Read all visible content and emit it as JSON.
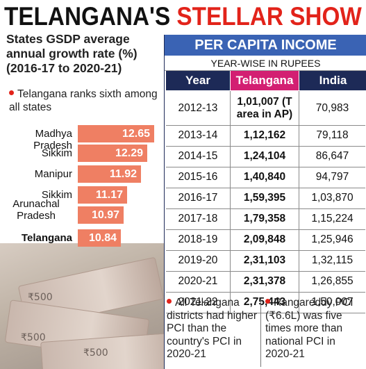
{
  "header": {
    "title_part1": "TELANGANA'S",
    "title_part2": "STELLAR SHOW"
  },
  "left_panel": {
    "subtitle": "States GSDP average annual growth rate (%) (2016-17 to 2020-21)",
    "note": "Telangana ranks sixth among all states"
  },
  "chart_data": [
    {
      "type": "bar",
      "orientation": "horizontal",
      "title": "States GSDP average annual growth rate (%) (2016-17 to 2020-21)",
      "categories": [
        "Madhya Pradesh",
        "Sikkim",
        "Manipur",
        "Sikkim",
        "Arunachal Pradesh",
        "Telangana"
      ],
      "values": [
        12.65,
        12.29,
        11.92,
        11.17,
        10.97,
        10.84
      ],
      "value_labels": [
        "12.65",
        "12.29",
        "11.92",
        "11.17",
        "10.97",
        "10.84"
      ],
      "highlight": "Telangana",
      "bar_color": "#ef7f63"
    },
    {
      "type": "table",
      "title": "PER CAPITA INCOME",
      "subtitle": "YEAR-WISE IN RUPEES",
      "columns": [
        "Year",
        "Telangana",
        "India"
      ],
      "rows": [
        {
          "year": "2012-13",
          "telangana": "1,01,007 (T area in AP)",
          "india": "70,983"
        },
        {
          "year": "2013-14",
          "telangana": "1,12,162",
          "india": "79,118"
        },
        {
          "year": "2014-15",
          "telangana": "1,24,104",
          "india": "86,647"
        },
        {
          "year": "2015-16",
          "telangana": "1,40,840",
          "india": "94,797"
        },
        {
          "year": "2016-17",
          "telangana": "1,59,395",
          "india": "1,03,870"
        },
        {
          "year": "2017-18",
          "telangana": "1,79,358",
          "india": "1,15,224"
        },
        {
          "year": "2018-19",
          "telangana": "2,09,848",
          "india": "1,25,946"
        },
        {
          "year": "2019-20",
          "telangana": "2,31,103",
          "india": "1,32,115"
        },
        {
          "year": "2020-21",
          "telangana": "2,31,378",
          "india": "1,26,855"
        },
        {
          "year": "2021-22",
          "telangana": "2,75,443",
          "india": "1,50,007"
        }
      ]
    }
  ],
  "footnotes": {
    "left": "All Telangana districts had higher PCI than the country's PCI in 2020-21",
    "right": "Rangareddy PCI (₹6.6L) was five times more than national PCI in 2020-21"
  },
  "colors": {
    "title_red": "#e2231a",
    "table_title_bg": "#3a63b4",
    "header_navy": "#1d2a57",
    "header_magenta": "#d31f72",
    "bar": "#ef7f63"
  }
}
